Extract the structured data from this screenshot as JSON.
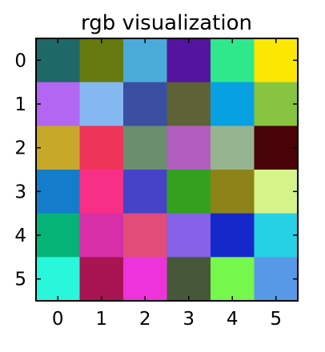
{
  "chart_data": {
    "type": "heatmap",
    "title": "rgb visualization",
    "xlabel": "",
    "ylabel": "",
    "x_ticks": [
      "0",
      "1",
      "2",
      "3",
      "4",
      "5"
    ],
    "y_ticks": [
      "0",
      "1",
      "2",
      "3",
      "4",
      "5"
    ],
    "grid": false,
    "cells": [
      [
        "#1e6868",
        "#677a10",
        "#4aabd9",
        "#5514a0",
        "#2ee88b",
        "#fce702"
      ],
      [
        "#b366f2",
        "#85b8f1",
        "#3b4fa2",
        "#5d6237",
        "#07a0e1",
        "#87c43f"
      ],
      [
        "#c8a829",
        "#ef345a",
        "#6a8e6e",
        "#b15ebe",
        "#97b490",
        "#470307"
      ],
      [
        "#137ccb",
        "#f72f86",
        "#4643c8",
        "#34a020",
        "#8d8319",
        "#d5f388"
      ],
      [
        "#05b377",
        "#d62fa8",
        "#e24c79",
        "#8561e7",
        "#1529cb",
        "#26d1e6"
      ],
      [
        "#29f7db",
        "#a81452",
        "#ed33da",
        "#47583a",
        "#76f74b",
        "#5799e6"
      ]
    ]
  }
}
